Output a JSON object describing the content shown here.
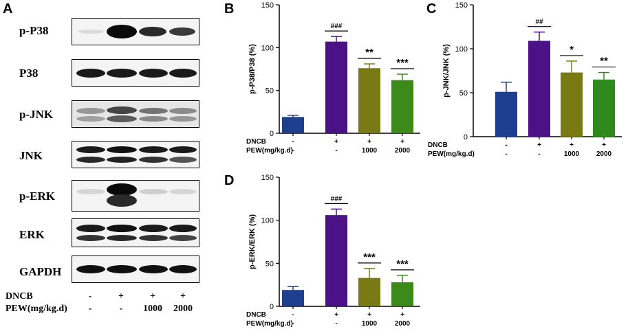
{
  "panel_letters": {
    "a": "A",
    "b": "B",
    "c": "C",
    "d": "D"
  },
  "blot": {
    "rows": [
      {
        "label": "p-P38"
      },
      {
        "label": "P38"
      },
      {
        "label": "p-JNK"
      },
      {
        "label": "JNK"
      },
      {
        "label": "p-ERK"
      },
      {
        "label": "ERK"
      },
      {
        "label": "GAPDH"
      }
    ],
    "conditions": [
      {
        "label": "DNCB",
        "values": [
          "-",
          "+",
          "+",
          "+"
        ]
      },
      {
        "label": "PEW(mg/kg.d)",
        "values": [
          "-",
          "-",
          "1000",
          "2000"
        ]
      }
    ]
  },
  "chart_data": [
    {
      "type": "bar",
      "panel": "B",
      "ylabel": "p-P38/P38 (%)",
      "ylim": [
        0,
        150
      ],
      "yticks": [
        0,
        50,
        100,
        150
      ],
      "values": [
        19,
        107,
        76,
        62
      ],
      "errors": [
        2,
        6,
        5,
        7
      ],
      "colors": [
        "#1f3f8e",
        "#4b1287",
        "#7a7a14",
        "#3b8a1a"
      ],
      "annotations": [
        "",
        "###",
        "**",
        "***"
      ],
      "conditions": [
        {
          "label": "DNCB",
          "values": [
            "-",
            "+",
            "+",
            "+"
          ]
        },
        {
          "label": "PEW(mg/kg.d)",
          "values": [
            "-",
            "-",
            "1000",
            "2000"
          ]
        }
      ]
    },
    {
      "type": "bar",
      "panel": "C",
      "ylabel": "p-JNK/JNK (%)",
      "ylim": [
        0,
        150
      ],
      "yticks": [
        0,
        50,
        100,
        150
      ],
      "values": [
        51,
        109,
        73,
        65
      ],
      "errors": [
        11,
        10,
        13,
        8
      ],
      "colors": [
        "#1f3f8e",
        "#4b1287",
        "#7a7a14",
        "#2e8a1a"
      ],
      "annotations": [
        "",
        "##",
        "*",
        "**"
      ],
      "conditions": [
        {
          "label": "DNCB",
          "values": [
            "-",
            "+",
            "+",
            "+"
          ]
        },
        {
          "label": "PEW(mg/kg.d)",
          "values": [
            "-",
            "-",
            "1000",
            "2000"
          ]
        }
      ]
    },
    {
      "type": "bar",
      "panel": "D",
      "ylabel": "p-ERK/ERK (%)",
      "ylim": [
        0,
        150
      ],
      "yticks": [
        0,
        50,
        100,
        150
      ],
      "values": [
        19,
        106,
        33,
        28
      ],
      "errors": [
        4,
        7,
        11,
        8
      ],
      "colors": [
        "#1f3f8e",
        "#4b1287",
        "#7a7a14",
        "#3b8a1a"
      ],
      "annotations": [
        "",
        "###",
        "***",
        "***"
      ],
      "conditions": [
        {
          "label": "DNCB",
          "values": [
            "-",
            "+",
            "+",
            "+"
          ]
        },
        {
          "label": "PEW(mg/kg.d)",
          "values": [
            "-",
            "-",
            "1000",
            "2000"
          ]
        }
      ]
    }
  ]
}
